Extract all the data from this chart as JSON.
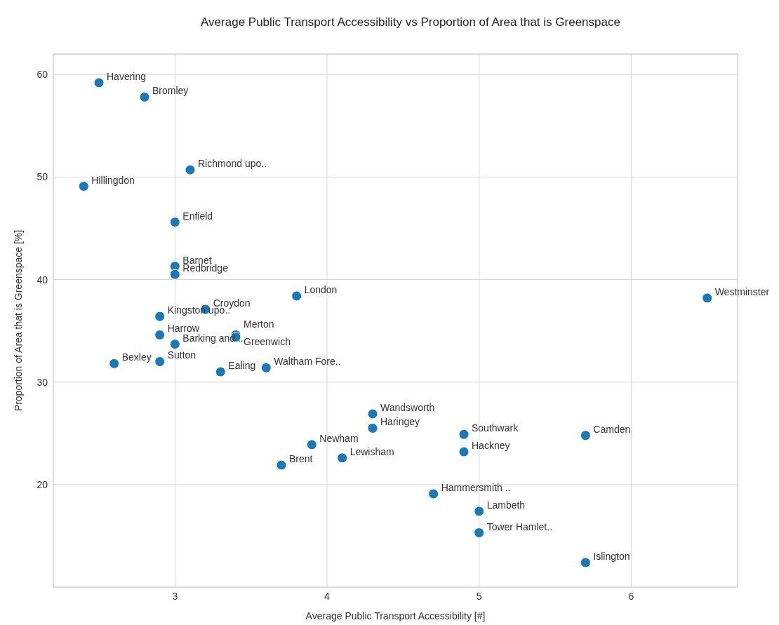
{
  "chart_data": {
    "type": "scatter",
    "title": "Average Public Transport Accessibility vs Proportion of Area that is Greenspace",
    "xlabel": "Average Public Transport Accessibility [#]",
    "ylabel": "Proportion of Area that is Greenspace [%]",
    "x": [
      2.5,
      2.8,
      3.1,
      2.4,
      3.0,
      3.0,
      3.0,
      3.8,
      6.5,
      3.2,
      2.9,
      3.4,
      3.4,
      2.9,
      3.0,
      2.6,
      2.9,
      3.3,
      3.6,
      4.3,
      4.3,
      4.9,
      5.7,
      3.9,
      4.9,
      4.1,
      3.7,
      4.7,
      5.0,
      5.0,
      5.7
    ],
    "values": [
      59.2,
      57.8,
      50.7,
      49.1,
      45.6,
      41.3,
      40.5,
      38.4,
      38.2,
      37.1,
      36.4,
      34.6,
      34.4,
      34.6,
      33.7,
      31.8,
      32.0,
      31.0,
      31.4,
      26.9,
      25.5,
      24.9,
      24.8,
      23.9,
      23.2,
      22.6,
      21.9,
      19.1,
      17.4,
      15.3,
      12.4
    ],
    "color": "#1f77b4",
    "marker": "circle",
    "grid": true,
    "legend": false,
    "xlim": [
      2.2,
      6.7
    ],
    "xticks": [
      3,
      4,
      5,
      6
    ],
    "ylim": [
      10,
      62
    ],
    "yticks": [
      20,
      30,
      40,
      50,
      60
    ],
    "annotations": [
      {
        "text": "Havering",
        "x": 2.5,
        "y": 59.2
      },
      {
        "text": "Bromley",
        "x": 2.8,
        "y": 57.8
      },
      {
        "text": "Richmond upo..",
        "x": 3.1,
        "y": 50.7
      },
      {
        "text": "Hillingdon",
        "x": 2.4,
        "y": 49.1
      },
      {
        "text": "Enfield",
        "x": 3.0,
        "y": 45.6
      },
      {
        "text": "Barnet",
        "x": 3.0,
        "y": 41.3
      },
      {
        "text": "Redbridge",
        "x": 3.0,
        "y": 40.5
      },
      {
        "text": "London",
        "x": 3.8,
        "y": 38.4
      },
      {
        "text": "Westminster",
        "x": 6.5,
        "y": 38.2
      },
      {
        "text": "Croydon",
        "x": 3.2,
        "y": 37.1
      },
      {
        "text": "Kingston upo..",
        "x": 2.9,
        "y": 36.4
      },
      {
        "text": "Merton",
        "x": 3.4,
        "y": 34.6
      },
      {
        "text": "Greenwich",
        "x": 3.4,
        "y": 34.4
      },
      {
        "text": "Harrow",
        "x": 2.9,
        "y": 34.6
      },
      {
        "text": "Barking and ..",
        "x": 3.0,
        "y": 33.7
      },
      {
        "text": "Bexley",
        "x": 2.6,
        "y": 31.8
      },
      {
        "text": "Sutton",
        "x": 2.9,
        "y": 32.0
      },
      {
        "text": "Ealing",
        "x": 3.3,
        "y": 31.0
      },
      {
        "text": "Waltham Fore..",
        "x": 3.6,
        "y": 31.4
      },
      {
        "text": "Wandsworth",
        "x": 4.3,
        "y": 26.9
      },
      {
        "text": "Haringey",
        "x": 4.3,
        "y": 25.5
      },
      {
        "text": "Southwark",
        "x": 4.9,
        "y": 24.9
      },
      {
        "text": "Camden",
        "x": 5.7,
        "y": 24.8
      },
      {
        "text": "Newham",
        "x": 3.9,
        "y": 23.9
      },
      {
        "text": "Hackney",
        "x": 4.9,
        "y": 23.2
      },
      {
        "text": "Lewisham",
        "x": 4.1,
        "y": 22.6
      },
      {
        "text": "Brent",
        "x": 3.7,
        "y": 21.9
      },
      {
        "text": "Hammersmith ..",
        "x": 4.7,
        "y": 19.1
      },
      {
        "text": "Lambeth",
        "x": 5.0,
        "y": 17.4
      },
      {
        "text": "Tower Hamlet..",
        "x": 5.0,
        "y": 15.3
      },
      {
        "text": "Islington",
        "x": 5.7,
        "y": 12.4
      }
    ]
  }
}
